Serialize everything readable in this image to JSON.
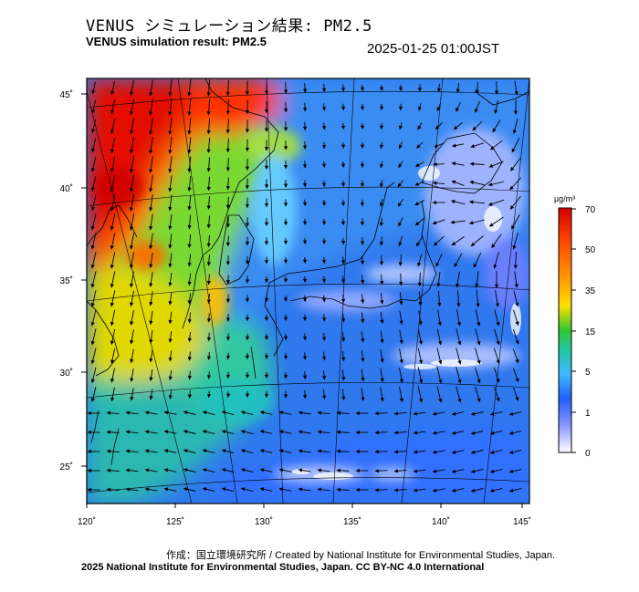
{
  "header": {
    "title_jp": "VENUS シミュレーション結果: PM2.5",
    "title_en": "VENUS simulation result: PM2.5",
    "timestamp": "2025-01-25 01:00JST"
  },
  "map": {
    "lon_range": [
      120,
      145
    ],
    "lat_range": [
      23,
      46
    ],
    "lon_ticks": [
      "120˚",
      "125˚",
      "130˚",
      "135˚",
      "140˚",
      "145˚"
    ],
    "lat_ticks": [
      "45˚",
      "40˚",
      "35˚",
      "30˚",
      "25˚"
    ]
  },
  "colorbar": {
    "unit": "µg/m³",
    "labels": [
      "70",
      "50",
      "35",
      "15",
      "5",
      "1",
      "0"
    ],
    "colors": [
      "#d40000",
      "#ff4a00",
      "#ffa000",
      "#ffe000",
      "#a0e000",
      "#30c830",
      "#20c8a0",
      "#40b8ff",
      "#2060ff",
      "#8090ff",
      "#ffffff"
    ]
  },
  "footer": {
    "credit": "作成：国立環境研究所 / Created by National Institute for Environmental Studies, Japan.",
    "license": "2025 National Institute for Environmental Studies, Japan. CC BY-NC 4.0 International"
  }
}
